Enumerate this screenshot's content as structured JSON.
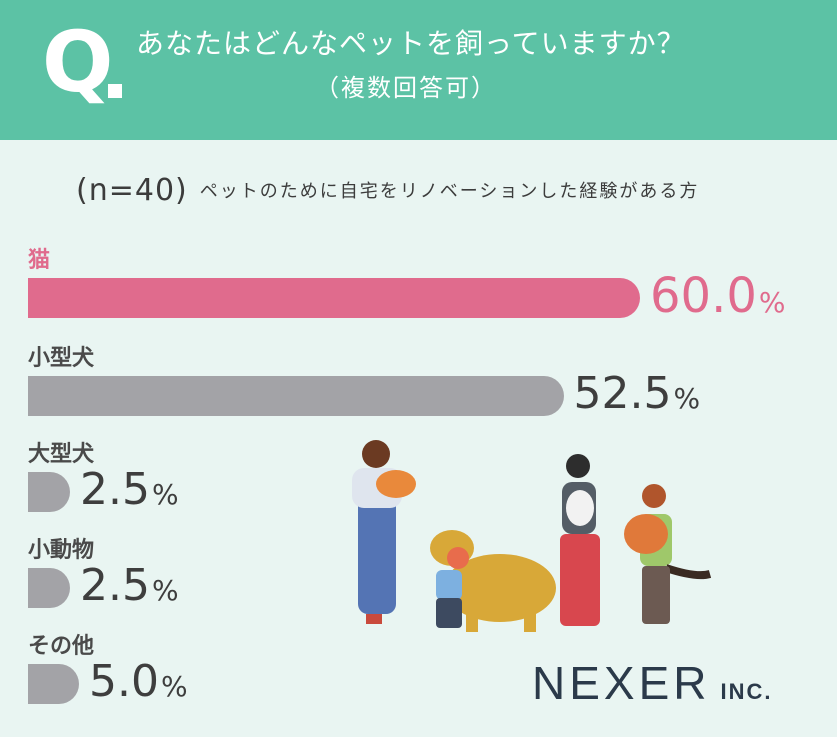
{
  "header": {
    "q_mark": "Q",
    "title": "あなたはどんなペットを飼っていますか？",
    "subtitle": "（複数回答可）"
  },
  "sample": {
    "n_label": "(n=40)",
    "note": "ペットのために自宅をリノベーションした経験がある方"
  },
  "colors": {
    "header": "#5cc2a5",
    "highlight": "#e06b8d",
    "bar": "#a3a3a7",
    "background": "#e9f5f2"
  },
  "chart_data": {
    "type": "bar",
    "orientation": "horizontal",
    "categories": [
      "猫",
      "小型犬",
      "大型犬",
      "小動物",
      "その他"
    ],
    "values": [
      60.0,
      52.5,
      2.5,
      2.5,
      5.0
    ],
    "value_labels": [
      "60.0",
      "52.5",
      "2.5",
      "2.5",
      "5.0"
    ],
    "unit": "%",
    "highlight_index": 0
  },
  "logo": {
    "name": "NEXER",
    "suffix": "INC."
  }
}
